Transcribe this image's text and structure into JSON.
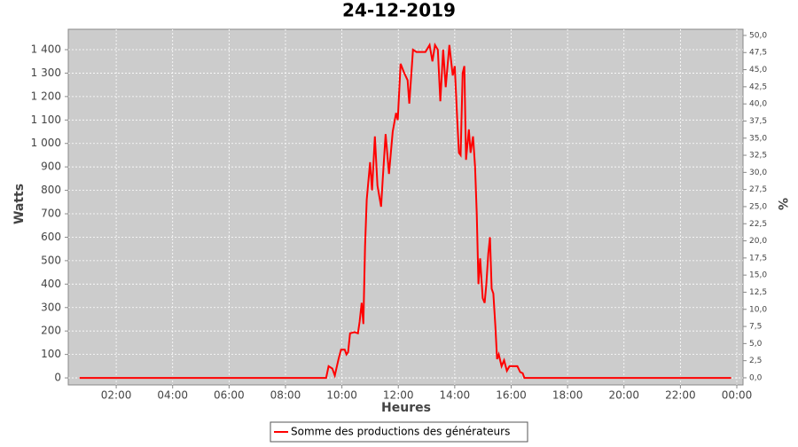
{
  "chart_data": {
    "type": "line",
    "title": "24-12-2019",
    "x_label": "Heures",
    "y_label": "Watts",
    "y2_label": "%",
    "x": [
      0.7,
      9.44,
      9.53,
      9.66,
      9.75,
      9.88,
      9.97,
      10.1,
      10.16,
      10.22,
      10.29,
      10.45,
      10.57,
      10.63,
      10.7,
      10.76,
      10.82,
      10.88,
      11.0,
      11.07,
      11.17,
      11.26,
      11.39,
      11.45,
      11.55,
      11.67,
      11.8,
      11.92,
      11.98,
      12.08,
      12.21,
      12.33,
      12.39,
      12.52,
      12.64,
      12.96,
      13.11,
      13.21,
      13.3,
      13.4,
      13.49,
      13.59,
      13.68,
      13.81,
      13.93,
      14.0,
      14.09,
      14.15,
      14.21,
      14.28,
      14.34,
      14.4,
      14.5,
      14.56,
      14.65,
      14.72,
      14.78,
      14.84,
      14.9,
      14.99,
      15.06,
      15.12,
      15.19,
      15.25,
      15.31,
      15.37,
      15.44,
      15.5,
      15.56,
      15.66,
      15.75,
      15.85,
      15.94,
      16.22,
      16.32,
      16.41,
      16.47,
      23.8
    ],
    "series": [
      {
        "name": "Somme des productions des  générateurs",
        "color": "#ff0000",
        "values": [
          0,
          0,
          50,
          40,
          10,
          80,
          120,
          120,
          100,
          110,
          190,
          195,
          190,
          240,
          320,
          230,
          560,
          760,
          920,
          800,
          1030,
          820,
          730,
          850,
          1040,
          870,
          1050,
          1130,
          1100,
          1340,
          1300,
          1270,
          1170,
          1400,
          1390,
          1390,
          1420,
          1350,
          1420,
          1400,
          1180,
          1400,
          1240,
          1420,
          1290,
          1330,
          1100,
          960,
          950,
          1300,
          1330,
          930,
          1060,
          960,
          1030,
          900,
          700,
          400,
          510,
          340,
          320,
          400,
          530,
          600,
          380,
          360,
          220,
          80,
          100,
          50,
          75,
          30,
          50,
          50,
          25,
          20,
          0,
          0
        ]
      }
    ],
    "xlim": [
      0.3,
      24.22
    ],
    "xticks": [
      {
        "value": 2,
        "label": "02:00"
      },
      {
        "value": 4,
        "label": "04:00"
      },
      {
        "value": 6,
        "label": "06:00"
      },
      {
        "value": 8,
        "label": "08:00"
      },
      {
        "value": 10,
        "label": "10:00"
      },
      {
        "value": 12,
        "label": "12:00"
      },
      {
        "value": 14,
        "label": "14:00"
      },
      {
        "value": 16,
        "label": "16:00"
      },
      {
        "value": 18,
        "label": "18:00"
      },
      {
        "value": 20,
        "label": "20:00"
      },
      {
        "value": 22,
        "label": "22:00"
      },
      {
        "value": 24,
        "label": "00:00"
      }
    ],
    "ylim": [
      -30,
      1487
    ],
    "yticks": [
      0,
      100,
      200,
      300,
      400,
      500,
      600,
      700,
      800,
      900,
      {
        "value": 1000,
        "label": "1 000"
      },
      {
        "value": 1100,
        "label": "1 100"
      },
      {
        "value": 1200,
        "label": "1 200"
      },
      {
        "value": 1300,
        "label": "1 300"
      },
      {
        "value": 1400,
        "label": "1 400"
      }
    ],
    "y2lim": [
      -1.04,
      50.9
    ],
    "y2ticks": [
      {
        "value": 0,
        "label": "0,0"
      },
      {
        "value": 2.5,
        "label": "2,5"
      },
      {
        "value": 5,
        "label": "5,0"
      },
      {
        "value": 7.5,
        "label": "7,5"
      },
      {
        "value": 10,
        "label": "10,0"
      },
      {
        "value": 12.5,
        "label": "12,5"
      },
      {
        "value": 15,
        "label": "15,0"
      },
      {
        "value": 17.5,
        "label": "17,5"
      },
      {
        "value": 20,
        "label": "20,0"
      },
      {
        "value": 22.5,
        "label": "22,5"
      },
      {
        "value": 25,
        "label": "25,0"
      },
      {
        "value": 27.5,
        "label": "27,5"
      },
      {
        "value": 30,
        "label": "30,0"
      },
      {
        "value": 32.5,
        "label": "32,5"
      },
      {
        "value": 35,
        "label": "35,0"
      },
      {
        "value": 37.5,
        "label": "37,5"
      },
      {
        "value": 40,
        "label": "40,0"
      },
      {
        "value": 42.5,
        "label": "42,5"
      },
      {
        "value": 45,
        "label": "45,0"
      },
      {
        "value": 47.5,
        "label": "47,5"
      },
      {
        "value": 50,
        "label": "50,0"
      }
    ],
    "grid": true,
    "background": "#cccccc",
    "legend": "bottom"
  }
}
